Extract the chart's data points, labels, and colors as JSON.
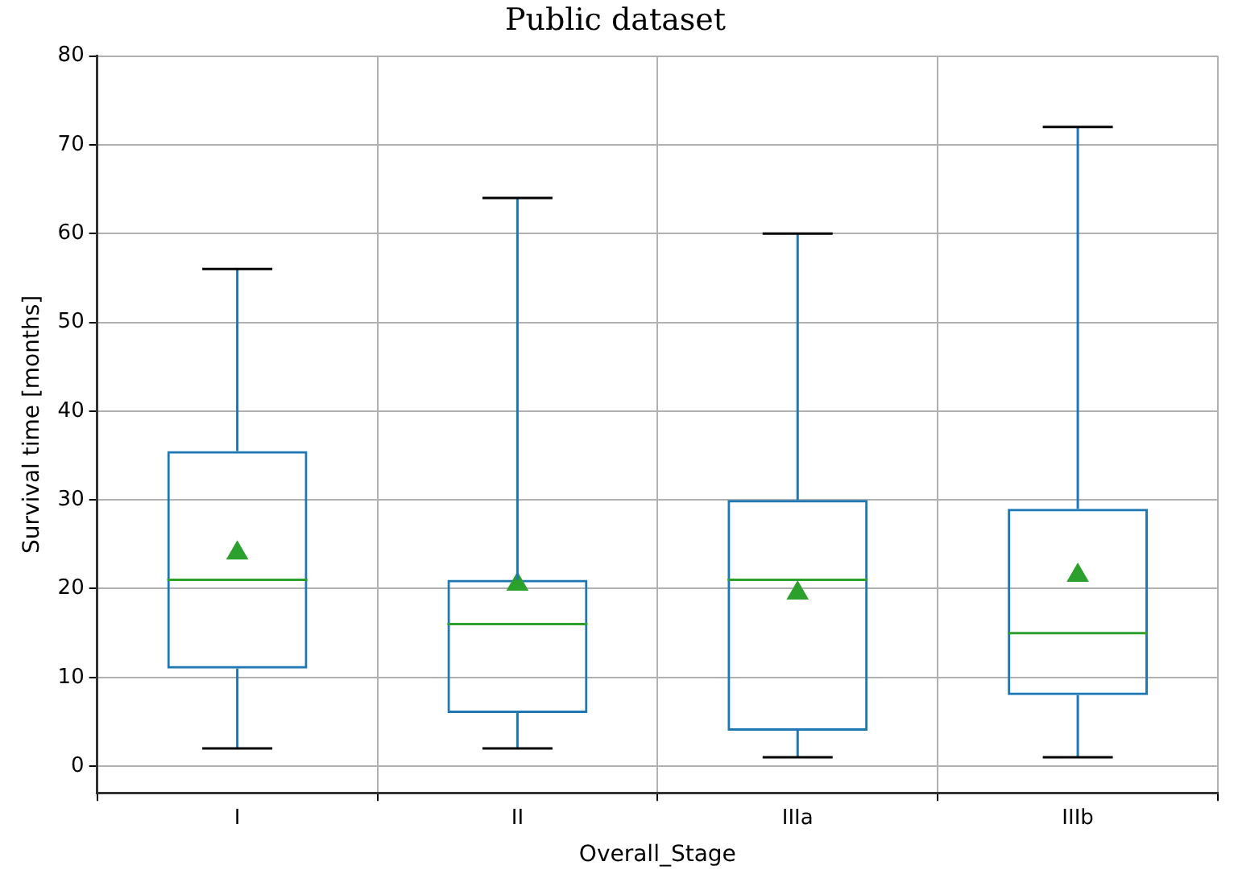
{
  "chart_data": {
    "type": "box",
    "title": "Public dataset",
    "xlabel": "Overall_Stage",
    "ylabel": "Survival time [months]",
    "categories": [
      "I",
      "II",
      "IIIa",
      "IIIb"
    ],
    "color": "#1f77b4",
    "marker": "triangle",
    "boxes": [
      {
        "low": 2,
        "q1": 11,
        "median": 21,
        "q3": 35.5,
        "high": 56,
        "mean": 24
      },
      {
        "low": 2,
        "q1": 6,
        "median": 16,
        "q3": 21,
        "high": 64,
        "mean": 20.5
      },
      {
        "low": 1,
        "q1": 4,
        "median": 21,
        "q3": 30,
        "high": 60,
        "mean": 19.5
      },
      {
        "low": 1,
        "q1": 8,
        "median": 15,
        "q3": 29,
        "high": 72,
        "mean": 21.5
      }
    ],
    "ylim": [
      -3,
      80
    ],
    "yticks": [
      0,
      10,
      20,
      30,
      40,
      50,
      60,
      70,
      80
    ],
    "grid": true
  }
}
